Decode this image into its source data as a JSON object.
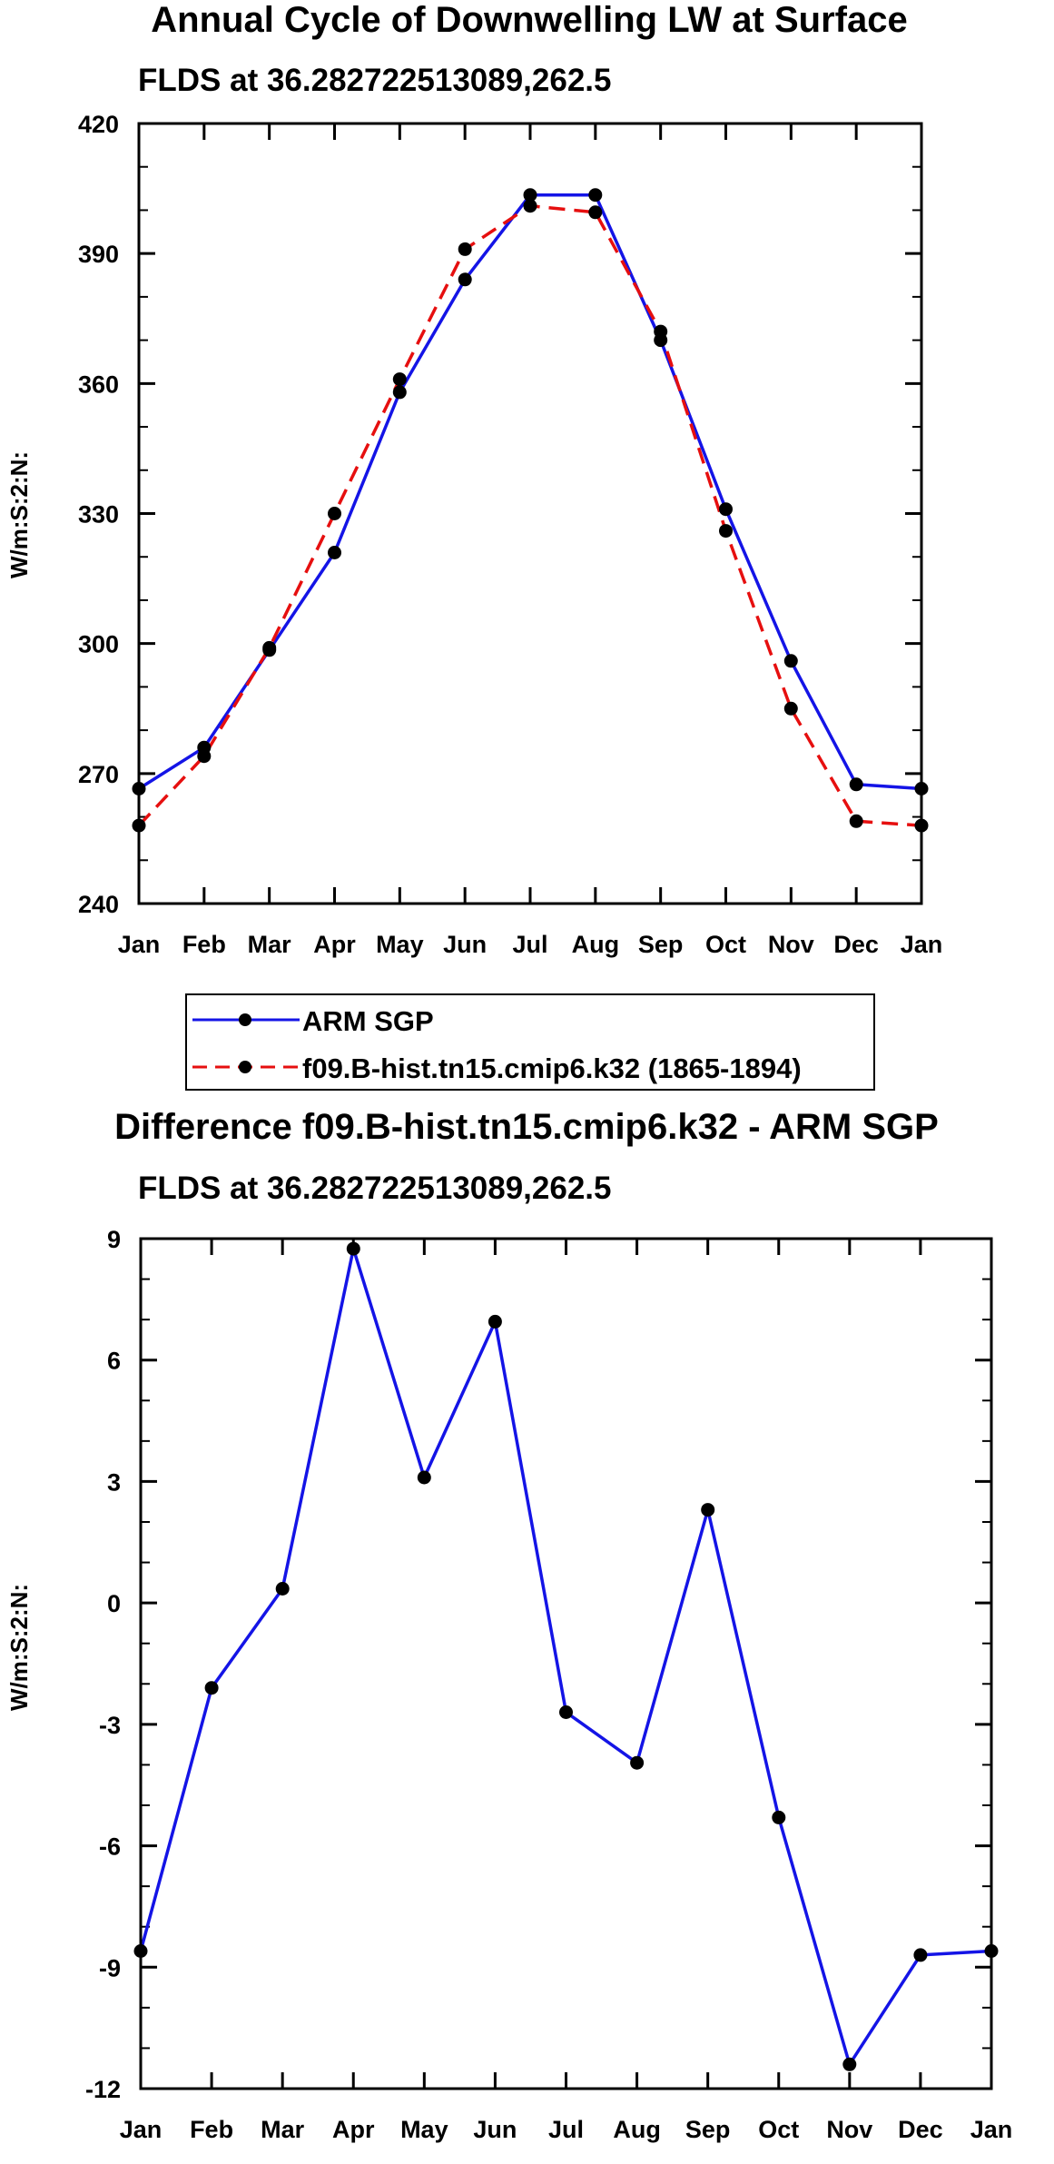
{
  "colors": {
    "series_1": "#1414e6",
    "series_2": "#e60f0f",
    "marker": "#000000",
    "background": "#ffffff"
  },
  "chart_data": [
    {
      "type": "line",
      "title": "Annual Cycle of Downwelling LW at Surface",
      "subtitle": "FLDS at 36.282722513089,262.5",
      "xlabel": "",
      "ylabel": "W/m:S:2:N:",
      "categories": [
        "Jan",
        "Feb",
        "Mar",
        "Apr",
        "May",
        "Jun",
        "Jul",
        "Aug",
        "Sep",
        "Oct",
        "Nov",
        "Dec",
        "Jan"
      ],
      "ylim": [
        240,
        420
      ],
      "yticks": [
        240,
        270,
        300,
        330,
        360,
        390,
        420
      ],
      "ytick_labels": [
        "240",
        "270",
        "300",
        "330",
        "360",
        "390",
        "420"
      ],
      "grid": false,
      "legend_position": "below",
      "series": [
        {
          "name": "ARM SGP",
          "style": "solid",
          "color": "#1414e6",
          "values": [
            266.5,
            276,
            298.5,
            321,
            358,
            384,
            403.5,
            403.5,
            370,
            331,
            296,
            267.5,
            266.5
          ]
        },
        {
          "name": "f09.B-hist.tn15.cmip6.k32 (1865-1894)",
          "style": "dashed",
          "color": "#e60f0f",
          "values": [
            258,
            274,
            299,
            330,
            361,
            391,
            401,
            399.5,
            372,
            326,
            285,
            259,
            258
          ]
        }
      ]
    },
    {
      "type": "line",
      "title": "Difference f09.B-hist.tn15.cmip6.k32 - ARM SGP",
      "subtitle": "FLDS at 36.282722513089,262.5",
      "xlabel": "",
      "ylabel": "W/m:S:2:N:",
      "categories": [
        "Jan",
        "Feb",
        "Mar",
        "Apr",
        "May",
        "Jun",
        "Jul",
        "Aug",
        "Sep",
        "Oct",
        "Nov",
        "Dec",
        "Jan"
      ],
      "ylim": [
        -12,
        9
      ],
      "yticks": [
        -12,
        -9,
        -6,
        -3,
        0,
        3,
        6,
        9
      ],
      "ytick_labels": [
        "-12",
        "-9",
        "-6",
        "-3",
        "0",
        "3",
        "6",
        "9"
      ],
      "grid": false,
      "series": [
        {
          "name": "Difference",
          "style": "solid",
          "color": "#1414e6",
          "values": [
            -8.6,
            -2.1,
            0.35,
            8.75,
            3.1,
            6.95,
            -2.7,
            -3.95,
            2.3,
            -5.3,
            -11.4,
            -8.7,
            -8.6
          ]
        }
      ]
    }
  ]
}
